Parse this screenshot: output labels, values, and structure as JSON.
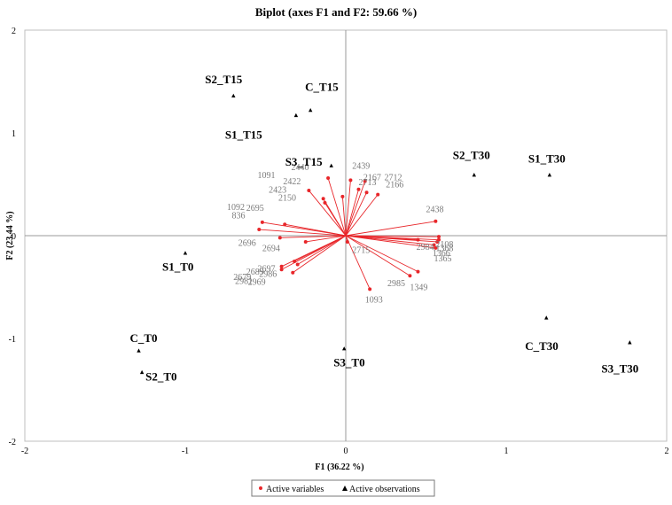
{
  "chart_data": {
    "type": "scatter",
    "title": "Biplot (axes F1 and F2: 59.66 %)",
    "xlabel": "F1 (36.22 %)",
    "ylabel": "F2 (23.44 %)",
    "xlim": [
      -2,
      2
    ],
    "ylim": [
      -2,
      2
    ],
    "xticks": [
      "-2",
      "-1",
      "0",
      "1",
      "2"
    ],
    "yticks": [
      "-2",
      "-1",
      "0",
      "1",
      "2"
    ],
    "grid": false,
    "legend": {
      "position": "bottom",
      "entries": [
        {
          "name": "Active variables",
          "color": "#e8262a",
          "marker": "circle"
        },
        {
          "name": "Active observations",
          "color": "#000000",
          "marker": "triangle"
        }
      ]
    },
    "observations": [
      {
        "name": "S2_T15",
        "x": -0.7,
        "y": 1.36
      },
      {
        "name": "C_T15",
        "x": -0.22,
        "y": 1.22
      },
      {
        "name": "S1_T15",
        "x": -0.31,
        "y": 1.17
      },
      {
        "name": "S3_T15",
        "x": -0.09,
        "y": 0.68
      },
      {
        "name": "S2_T30",
        "x": 0.8,
        "y": 0.59
      },
      {
        "name": "S1_T30",
        "x": 1.27,
        "y": 0.59
      },
      {
        "name": "S1_T0",
        "x": -1.0,
        "y": -0.17
      },
      {
        "name": "C_T0",
        "x": -1.29,
        "y": -1.12
      },
      {
        "name": "S2_T0",
        "x": -1.27,
        "y": -1.33
      },
      {
        "name": "S3_T0",
        "x": -0.01,
        "y": -1.1
      },
      {
        "name": "C_T30",
        "x": 1.25,
        "y": -0.8
      },
      {
        "name": "S3_T30",
        "x": 1.77,
        "y": -1.04
      }
    ],
    "variables": [
      {
        "name": "1091",
        "x": -0.23,
        "y": 0.44
      },
      {
        "name": "2440",
        "x": -0.11,
        "y": 0.56
      },
      {
        "name": "2439",
        "x": 0.03,
        "y": 0.54
      },
      {
        "name": "2422",
        "x": -0.14,
        "y": 0.36
      },
      {
        "name": "2423",
        "x": -0.13,
        "y": 0.32
      },
      {
        "name": "2150",
        "x": -0.02,
        "y": 0.38
      },
      {
        "name": "2167",
        "x": 0.12,
        "y": 0.53
      },
      {
        "name": "2712",
        "x": 0.08,
        "y": 0.45
      },
      {
        "name": "2713",
        "x": 0.13,
        "y": 0.42
      },
      {
        "name": "2166",
        "x": 0.2,
        "y": 0.4
      },
      {
        "name": "2438",
        "x": 0.56,
        "y": 0.14
      },
      {
        "name": "1092",
        "x": -0.52,
        "y": 0.13
      },
      {
        "name": "2695",
        "x": -0.38,
        "y": 0.11
      },
      {
        "name": "836",
        "x": -0.54,
        "y": 0.06
      },
      {
        "name": "2696",
        "x": -0.41,
        "y": -0.02
      },
      {
        "name": "2694",
        "x": -0.25,
        "y": -0.06
      },
      {
        "name": "2697",
        "x": -0.4,
        "y": -0.3
      },
      {
        "name": "2689",
        "x": -0.32,
        "y": -0.25
      },
      {
        "name": "2986",
        "x": -0.3,
        "y": -0.28
      },
      {
        "name": "2679",
        "x": -0.4,
        "y": -0.33
      },
      {
        "name": "2969",
        "x": -0.33,
        "y": -0.36
      },
      {
        "name": "2715",
        "x": 0.01,
        "y": -0.06
      },
      {
        "name": "2108",
        "x": 0.58,
        "y": -0.01
      },
      {
        "name": "2984",
        "x": 0.45,
        "y": -0.04
      },
      {
        "name": "1368",
        "x": 0.57,
        "y": -0.06
      },
      {
        "name": "1366",
        "x": 0.55,
        "y": -0.09
      },
      {
        "name": "1365",
        "x": 0.56,
        "y": -0.12
      },
      {
        "name": "2985",
        "x": 0.45,
        "y": -0.35
      },
      {
        "name": "1349",
        "x": 0.4,
        "y": -0.39
      },
      {
        "name": "1093",
        "x": 0.15,
        "y": -0.52
      },
      {
        "name": "2980",
        "x": 0.58,
        "y": -0.04
      }
    ],
    "variable_labels": [
      {
        "text": "1091",
        "x": -0.55,
        "y": 0.56
      },
      {
        "text": "2440",
        "x": -0.34,
        "y": 0.64
      },
      {
        "text": "2439",
        "x": 0.04,
        "y": 0.65
      },
      {
        "text": "2422",
        "x": -0.39,
        "y": 0.5
      },
      {
        "text": "2423",
        "x": -0.48,
        "y": 0.42
      },
      {
        "text": "2150",
        "x": -0.42,
        "y": 0.34
      },
      {
        "text": "2167",
        "x": 0.11,
        "y": 0.54
      },
      {
        "text": "2712",
        "x": 0.24,
        "y": 0.54
      },
      {
        "text": "2713",
        "x": 0.08,
        "y": 0.49
      },
      {
        "text": "2166",
        "x": 0.25,
        "y": 0.47
      },
      {
        "text": "2438",
        "x": 0.5,
        "y": 0.23
      },
      {
        "text": "1092",
        "x": -0.74,
        "y": 0.25
      },
      {
        "text": "2695",
        "x": -0.62,
        "y": 0.24
      },
      {
        "text": "836",
        "x": -0.71,
        "y": 0.17
      },
      {
        "text": "2696",
        "x": -0.67,
        "y": -0.1
      },
      {
        "text": "2694",
        "x": -0.52,
        "y": -0.15
      },
      {
        "text": "2697",
        "x": -0.55,
        "y": -0.35
      },
      {
        "text": "2689",
        "x": -0.62,
        "y": -0.38
      },
      {
        "text": "2986",
        "x": -0.54,
        "y": -0.4
      },
      {
        "text": "2679",
        "x": -0.7,
        "y": -0.43
      },
      {
        "text": "2981",
        "x": -0.69,
        "y": -0.47
      },
      {
        "text": "2969",
        "x": -0.61,
        "y": -0.48
      },
      {
        "text": "2715",
        "x": 0.04,
        "y": -0.17
      },
      {
        "text": "2108",
        "x": 0.56,
        "y": -0.11
      },
      {
        "text": "2984",
        "x": 0.44,
        "y": -0.14
      },
      {
        "text": "1368",
        "x": 0.56,
        "y": -0.15
      },
      {
        "text": "1366",
        "x": 0.54,
        "y": -0.2
      },
      {
        "text": "1365",
        "x": 0.55,
        "y": -0.25
      },
      {
        "text": "2985",
        "x": 0.26,
        "y": -0.49
      },
      {
        "text": "1349",
        "x": 0.4,
        "y": -0.53
      },
      {
        "text": "1093",
        "x": 0.12,
        "y": -0.65
      }
    ],
    "colors": {
      "variables": "#e8262a",
      "observations": "#000000",
      "variable_label": "#7a7a7a",
      "axis": "#9a9a9a",
      "frame": "#bfbfbf"
    }
  }
}
